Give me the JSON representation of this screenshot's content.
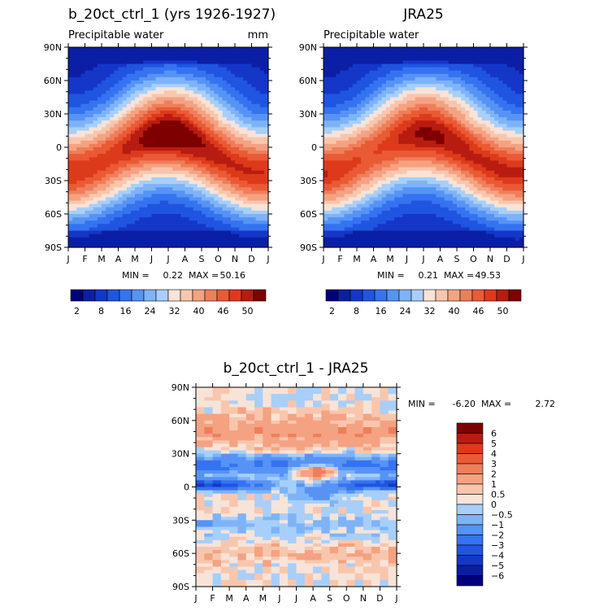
{
  "palette": [
    "#00007f",
    "#0a1fa5",
    "#1437c8",
    "#1f55e0",
    "#3573f0",
    "#5693f5",
    "#7eb3f8",
    "#a7cff9",
    "#d0e4f7",
    "#f7e3d8",
    "#f8c6ad",
    "#f4a282",
    "#ef7e5b",
    "#ea5a35",
    "#dd3a1c",
    "#b81c10",
    "#7f0000"
  ],
  "months": [
    "J",
    "F",
    "M",
    "A",
    "M",
    "J",
    "J",
    "A",
    "S",
    "O",
    "N",
    "D",
    "J"
  ],
  "lat_ticks": [
    "90N",
    "60N",
    "30N",
    "0",
    "30S",
    "60S",
    "90S"
  ],
  "chart_data": [
    {
      "type": "heatmap",
      "title": "b_20ct_ctrl_1 (yrs 1926-1927)",
      "subtitle": "Precipitable water",
      "units": "mm",
      "xlabel": "",
      "ylabel": "",
      "x_ticks": [
        "J",
        "F",
        "M",
        "A",
        "M",
        "J",
        "J",
        "A",
        "S",
        "O",
        "N",
        "D",
        "J"
      ],
      "y_ticks": [
        "90N",
        "60N",
        "30N",
        "0",
        "30S",
        "60S",
        "90S"
      ],
      "y_range": [
        -90,
        90
      ],
      "stats": {
        "min_label": "MIN =",
        "min": "0.22",
        "max_label": "MAX =",
        "max": "50.16"
      },
      "contour_levels": [
        2,
        5,
        8,
        12,
        16,
        20,
        24,
        28,
        32,
        36,
        40,
        43,
        46,
        48,
        50
      ],
      "colorbar_labels": [
        "2",
        "8",
        "16",
        "24",
        "32",
        "40",
        "46",
        "50"
      ],
      "max_value": 50.16,
      "min_value": 0.22
    },
    {
      "type": "heatmap",
      "title": "JRA25",
      "subtitle": "Precipitable water",
      "units": "",
      "xlabel": "",
      "ylabel": "",
      "x_ticks": [
        "J",
        "F",
        "M",
        "A",
        "M",
        "J",
        "J",
        "A",
        "S",
        "O",
        "N",
        "D",
        "J"
      ],
      "y_ticks": [
        "90N",
        "60N",
        "30N",
        "0",
        "30S",
        "60S",
        "90S"
      ],
      "y_range": [
        -90,
        90
      ],
      "stats": {
        "min_label": "MIN =",
        "min": "0.21",
        "max_label": "MAX =",
        "max": "49.53"
      },
      "contour_levels": [
        2,
        5,
        8,
        12,
        16,
        20,
        24,
        28,
        32,
        36,
        40,
        43,
        46,
        48,
        50
      ],
      "colorbar_labels": [
        "2",
        "8",
        "16",
        "24",
        "32",
        "40",
        "46",
        "50"
      ],
      "max_value": 49.53,
      "min_value": 0.21
    },
    {
      "type": "heatmap",
      "title": "b_20ct_ctrl_1 - JRA25",
      "subtitle": "",
      "units": "",
      "xlabel": "",
      "ylabel": "",
      "x_ticks": [
        "J",
        "F",
        "M",
        "A",
        "M",
        "J",
        "J",
        "A",
        "S",
        "O",
        "N",
        "D",
        "J"
      ],
      "y_ticks": [
        "90N",
        "60N",
        "30N",
        "0",
        "30S",
        "60S",
        "90S"
      ],
      "y_range": [
        -90,
        90
      ],
      "stats": {
        "min_label": "MIN =",
        "min": "-6.20",
        "max_label": "MAX =",
        "max": "2.72"
      },
      "contour_levels": [
        -6,
        -5,
        -4,
        -3,
        -2,
        -1,
        -0.5,
        0,
        0.5,
        1,
        2,
        3,
        4,
        5,
        6
      ],
      "colorbar_labels": [
        "6",
        "5",
        "4",
        "3",
        "2",
        "1",
        "0.5",
        "0",
        "−0.5",
        "−1",
        "−2",
        "−3",
        "−4",
        "−5",
        "−6"
      ],
      "max_value": 2.72,
      "min_value": -6.2
    }
  ]
}
